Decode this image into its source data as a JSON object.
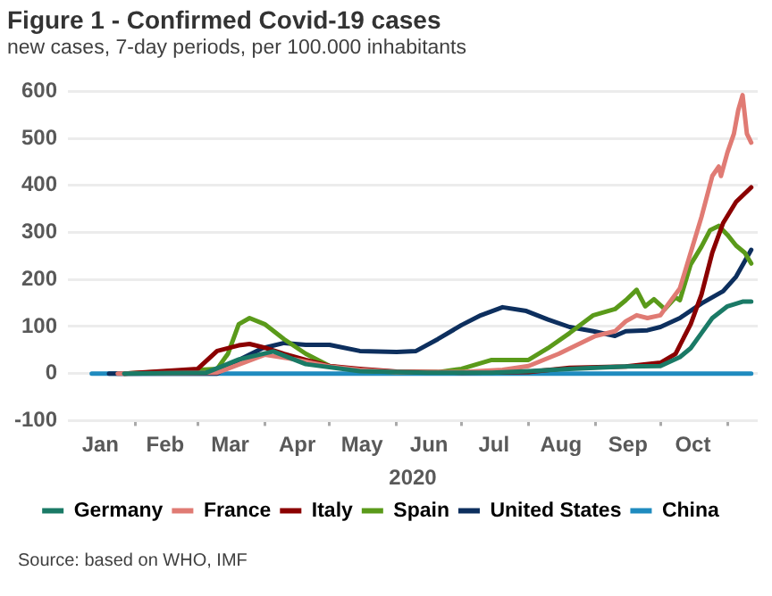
{
  "chart_data": {
    "type": "line",
    "title": "Figure 1 - Confirmed Covid-19 cases",
    "subtitle": "new cases, 7-day periods, per 100.000 inhabitants",
    "xlabel": "2020",
    "annotations": [
      "Source: based on WHO, IMF"
    ],
    "xlim": [
      "2020-01-01",
      "2020-11-15"
    ],
    "xticks": [
      {
        "value": "2020-01-16",
        "label": "Jan"
      },
      {
        "value": "2020-02-01",
        "label": null
      },
      {
        "value": "2020-02-15",
        "label": "Feb"
      },
      {
        "value": "2020-03-01",
        "label": null
      },
      {
        "value": "2020-03-16",
        "label": "Mar"
      },
      {
        "value": "2020-04-01",
        "label": null
      },
      {
        "value": "2020-04-16",
        "label": "Apr"
      },
      {
        "value": "2020-05-01",
        "label": null
      },
      {
        "value": "2020-05-16",
        "label": "May"
      },
      {
        "value": "2020-06-01",
        "label": null
      },
      {
        "value": "2020-06-16",
        "label": "Jun"
      },
      {
        "value": "2020-07-01",
        "label": null
      },
      {
        "value": "2020-07-16",
        "label": "Jul"
      },
      {
        "value": "2020-08-01",
        "label": null
      },
      {
        "value": "2020-08-16",
        "label": "Aug"
      },
      {
        "value": "2020-09-01",
        "label": null
      },
      {
        "value": "2020-09-16",
        "label": "Sep"
      },
      {
        "value": "2020-10-01",
        "label": null
      },
      {
        "value": "2020-10-16",
        "label": "Oct"
      },
      {
        "value": "2020-11-01",
        "label": null
      }
    ],
    "ylim": [
      -100,
      600
    ],
    "yticks": [
      -100,
      0,
      100,
      200,
      300,
      400,
      500,
      600
    ],
    "grid": "y",
    "legend": "bottom",
    "marker": "none",
    "line_style": "solid",
    "series": [
      {
        "name": "Germany",
        "color": "#1a7a66",
        "x": [
          "2020-01-27",
          "2020-03-05",
          "2020-03-20",
          "2020-04-05",
          "2020-04-20",
          "2020-05-15",
          "2020-06-15",
          "2020-07-15",
          "2020-08-01",
          "2020-08-20",
          "2020-09-15",
          "2020-10-01",
          "2020-10-10",
          "2020-10-15",
          "2020-10-20",
          "2020-10-25",
          "2020-11-01",
          "2020-11-08",
          "2020-11-12"
        ],
        "values": [
          0,
          2,
          30,
          47,
          20,
          5,
          2,
          2,
          5,
          10,
          15,
          16,
          35,
          54,
          86,
          118,
          143,
          153,
          153
        ]
      },
      {
        "name": "France",
        "color": "#e07b74",
        "x": [
          "2020-01-24",
          "2020-03-10",
          "2020-04-01",
          "2020-04-15",
          "2020-05-01",
          "2020-05-15",
          "2020-06-01",
          "2020-07-01",
          "2020-07-20",
          "2020-08-01",
          "2020-08-15",
          "2020-09-01",
          "2020-09-10",
          "2020-09-15",
          "2020-09-20",
          "2020-09-25",
          "2020-10-01",
          "2020-10-05",
          "2020-10-10",
          "2020-10-15",
          "2020-10-20",
          "2020-10-25",
          "2020-10-28",
          "2020-10-29",
          "2020-11-01",
          "2020-11-04",
          "2020-11-06",
          "2020-11-08",
          "2020-11-10",
          "2020-11-12"
        ],
        "values": [
          0,
          2,
          40,
          30,
          15,
          8,
          3,
          3,
          8,
          16,
          42,
          80,
          90,
          111,
          124,
          118,
          124,
          150,
          181,
          257,
          333,
          420,
          440,
          420,
          470,
          510,
          560,
          592,
          510,
          491
        ]
      },
      {
        "name": "Italy",
        "color": "#8b0000",
        "x": [
          "2020-01-27",
          "2020-03-01",
          "2020-03-10",
          "2020-03-20",
          "2020-03-25",
          "2020-04-01",
          "2020-04-10",
          "2020-04-20",
          "2020-05-01",
          "2020-05-15",
          "2020-06-01",
          "2020-07-01",
          "2020-08-01",
          "2020-08-20",
          "2020-09-15",
          "2020-10-01",
          "2020-10-08",
          "2020-10-15",
          "2020-10-20",
          "2020-10-25",
          "2020-10-30",
          "2020-11-05",
          "2020-11-12"
        ],
        "values": [
          0,
          10,
          48,
          60,
          63,
          55,
          42,
          29,
          16,
          10,
          4,
          2,
          3,
          12,
          15,
          23,
          42,
          105,
          168,
          257,
          320,
          365,
          396
        ]
      },
      {
        "name": "Spain",
        "color": "#5a9a1a",
        "x": [
          "2020-01-27",
          "2020-03-10",
          "2020-03-15",
          "2020-03-20",
          "2020-03-25",
          "2020-04-01",
          "2020-04-10",
          "2020-04-20",
          "2020-05-01",
          "2020-05-15",
          "2020-06-01",
          "2020-06-20",
          "2020-07-01",
          "2020-07-15",
          "2020-08-01",
          "2020-08-10",
          "2020-08-20",
          "2020-08-31",
          "2020-09-10",
          "2020-09-15",
          "2020-09-20",
          "2020-09-24",
          "2020-09-28",
          "2020-10-03",
          "2020-10-08",
          "2020-10-10",
          "2020-10-15",
          "2020-10-20",
          "2020-10-24",
          "2020-10-28",
          "2020-11-01",
          "2020-11-05",
          "2020-11-09",
          "2020-11-12"
        ],
        "values": [
          0,
          10,
          42,
          105,
          118,
          105,
          73,
          42,
          16,
          6,
          3,
          3,
          10,
          29,
          29,
          54,
          86,
          124,
          137,
          156,
          178,
          143,
          158,
          137,
          162,
          156,
          232,
          270,
          305,
          314,
          295,
          272,
          257,
          234
        ]
      },
      {
        "name": "United States",
        "color": "#0d2f5e",
        "x": [
          "2020-01-20",
          "2020-03-10",
          "2020-03-20",
          "2020-03-31",
          "2020-04-10",
          "2020-04-20",
          "2020-05-01",
          "2020-05-15",
          "2020-06-01",
          "2020-06-10",
          "2020-06-20",
          "2020-07-01",
          "2020-07-10",
          "2020-07-20",
          "2020-07-31",
          "2020-08-10",
          "2020-08-20",
          "2020-08-31",
          "2020-09-10",
          "2020-09-15",
          "2020-09-25",
          "2020-10-01",
          "2020-10-10",
          "2020-10-20",
          "2020-10-30",
          "2020-11-05",
          "2020-11-12"
        ],
        "values": [
          0,
          0,
          29,
          54,
          65,
          61,
          61,
          48,
          46,
          48,
          73,
          103,
          124,
          141,
          133,
          115,
          99,
          90,
          80,
          90,
          92,
          99,
          118,
          149,
          175,
          206,
          263
        ]
      },
      {
        "name": "China",
        "color": "#1f8bbf",
        "x": [
          "2020-01-12",
          "2020-11-12"
        ],
        "values": [
          0,
          0
        ]
      }
    ]
  }
}
